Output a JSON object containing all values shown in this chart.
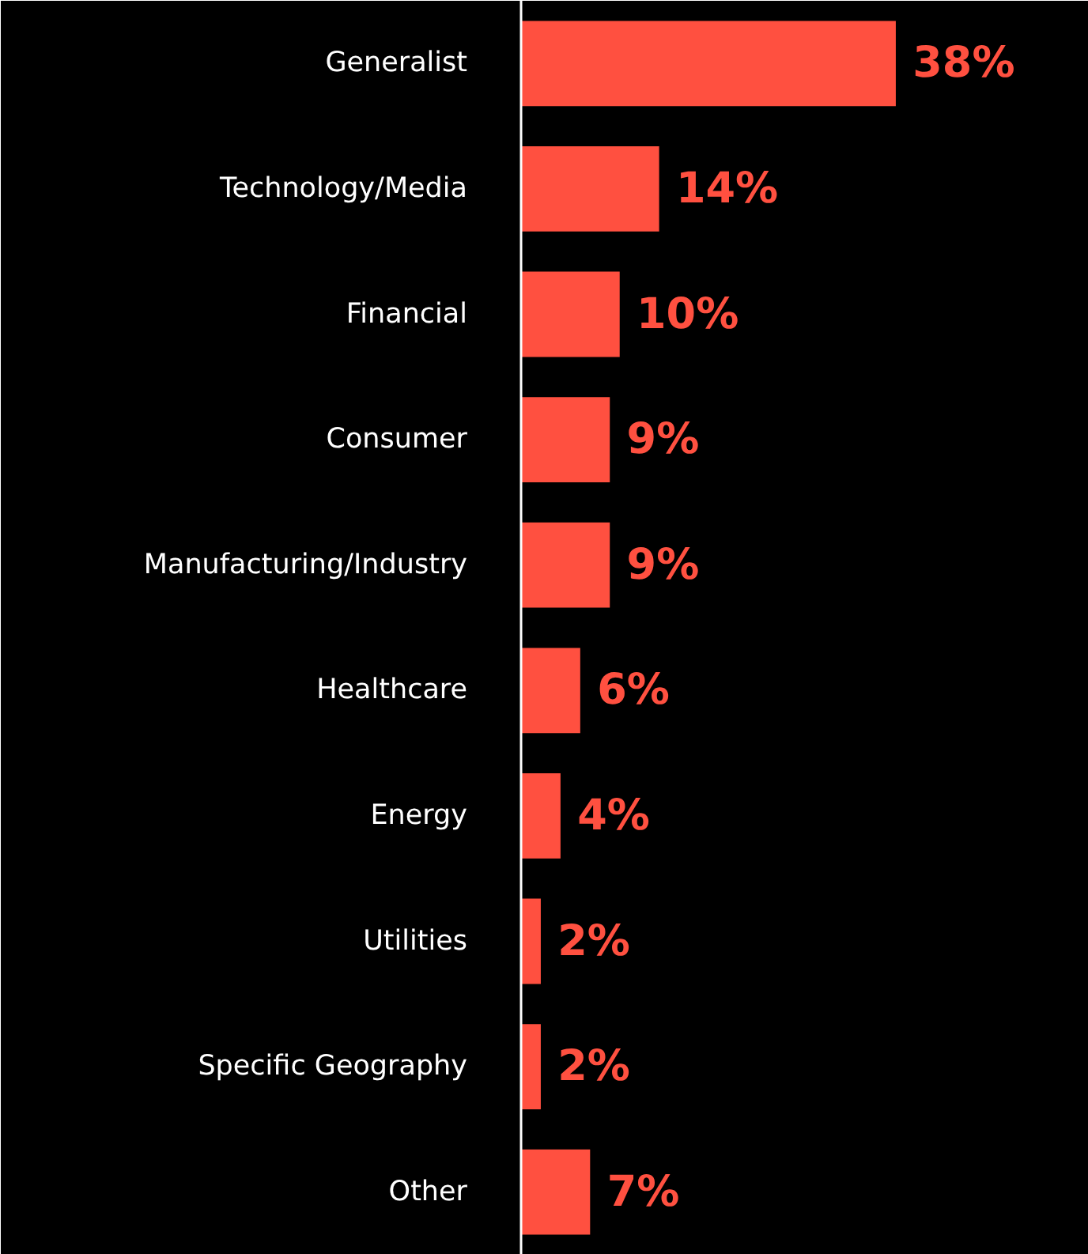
{
  "chart_data": {
    "type": "bar",
    "orientation": "horizontal",
    "categories": [
      "Generalist",
      "Technology/Media",
      "Financial",
      "Consumer",
      "Manufacturing/Industry",
      "Healthcare",
      "Energy",
      "Utilities",
      "Specific Geography",
      "Other"
    ],
    "values": [
      38,
      14,
      10,
      9,
      9,
      6,
      4,
      2,
      2,
      7
    ],
    "value_labels": [
      "38%",
      "14%",
      "10%",
      "9%",
      "9%",
      "6%",
      "4%",
      "2%",
      "2%",
      "7%"
    ],
    "color": "#ff5040",
    "grid": false
  }
}
